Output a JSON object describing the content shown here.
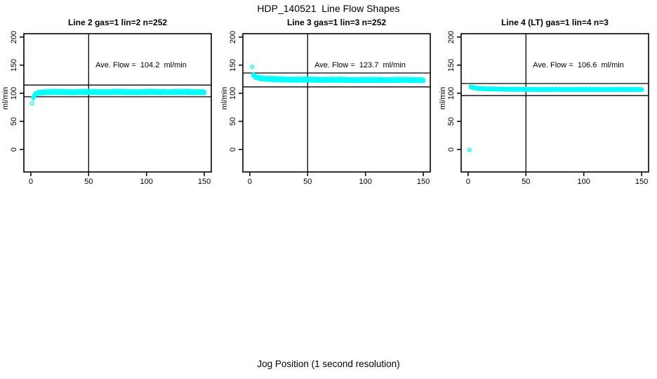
{
  "figure": {
    "title": "HDP_140521  Line Flow Shapes",
    "xlabel": "Jog Position (1 second resolution)"
  },
  "colors": {
    "marker": "#00ffff",
    "axis": "#000000",
    "background": "#ffffff"
  },
  "chart_data": [
    {
      "type": "scatter",
      "title": "Line 2 gas=1 lin=2 n=252",
      "ylabel": "ml/min",
      "ave_flow": 104.2,
      "ave_flow_label": "Ave. Flow =  104.2  ml/min",
      "xlim": [
        -6,
        156
      ],
      "ylim": [
        -40,
        206
      ],
      "xticks": [
        0,
        50,
        100,
        150
      ],
      "yticks": [
        0,
        50,
        100,
        150,
        200
      ],
      "grid": false,
      "vline_x": 50,
      "hlines": [
        93.8,
        114.6
      ],
      "marker": "open-circle",
      "marker_color": "#00ffff",
      "outliers": [
        [
          1,
          82
        ]
      ],
      "curve_points": [
        [
          2,
          93
        ],
        [
          3,
          96.5
        ],
        [
          4,
          99
        ],
        [
          5,
          100.5
        ],
        [
          7,
          101.5
        ],
        [
          10,
          102
        ],
        [
          15,
          102.3
        ],
        [
          25,
          102.5
        ],
        [
          50,
          102.5
        ],
        [
          100,
          102.5
        ],
        [
          150,
          102.5
        ]
      ],
      "band_spread": 2.5,
      "x_step": 1
    },
    {
      "type": "scatter",
      "title": "Line 3 gas=1 lin=3 n=252",
      "ylabel": "ml/min",
      "ave_flow": 123.7,
      "ave_flow_label": "Ave. Flow =  123.7  ml/min",
      "xlim": [
        -6,
        156
      ],
      "ylim": [
        -40,
        206
      ],
      "xticks": [
        0,
        50,
        100,
        150
      ],
      "yticks": [
        0,
        50,
        100,
        150,
        200
      ],
      "grid": false,
      "vline_x": 50,
      "hlines": [
        111.3,
        136.1
      ],
      "marker": "open-circle",
      "marker_color": "#00ffff",
      "outliers": [
        [
          2,
          147
        ]
      ],
      "curve_points": [
        [
          3,
          133
        ],
        [
          4,
          131
        ],
        [
          5,
          129.5
        ],
        [
          7,
          128
        ],
        [
          10,
          127
        ],
        [
          15,
          126
        ],
        [
          25,
          125
        ],
        [
          50,
          124.5
        ],
        [
          100,
          124
        ],
        [
          150,
          124
        ]
      ],
      "band_spread": 2.5,
      "x_step": 1
    },
    {
      "type": "scatter",
      "title": "Line 4 (LT) gas=1 lin=4 n=3",
      "ylabel": "ml/min",
      "ave_flow": 106.6,
      "ave_flow_label": "Ave. Flow =  106.6  ml/min",
      "xlim": [
        -6,
        156
      ],
      "ylim": [
        -40,
        206
      ],
      "xticks": [
        0,
        50,
        100,
        150
      ],
      "yticks": [
        0,
        50,
        100,
        150,
        200
      ],
      "grid": false,
      "vline_x": 50,
      "hlines": [
        95.9,
        117.3
      ],
      "marker": "open-circle",
      "marker_color": "#00ffff",
      "outliers": [
        [
          1,
          -1
        ]
      ],
      "curve_points": [
        [
          2,
          112
        ],
        [
          3,
          111
        ],
        [
          5,
          110
        ],
        [
          8,
          109
        ],
        [
          15,
          108
        ],
        [
          30,
          107.5
        ],
        [
          60,
          107
        ],
        [
          150,
          107
        ]
      ],
      "band_spread": 1.3,
      "x_step": 1
    }
  ]
}
